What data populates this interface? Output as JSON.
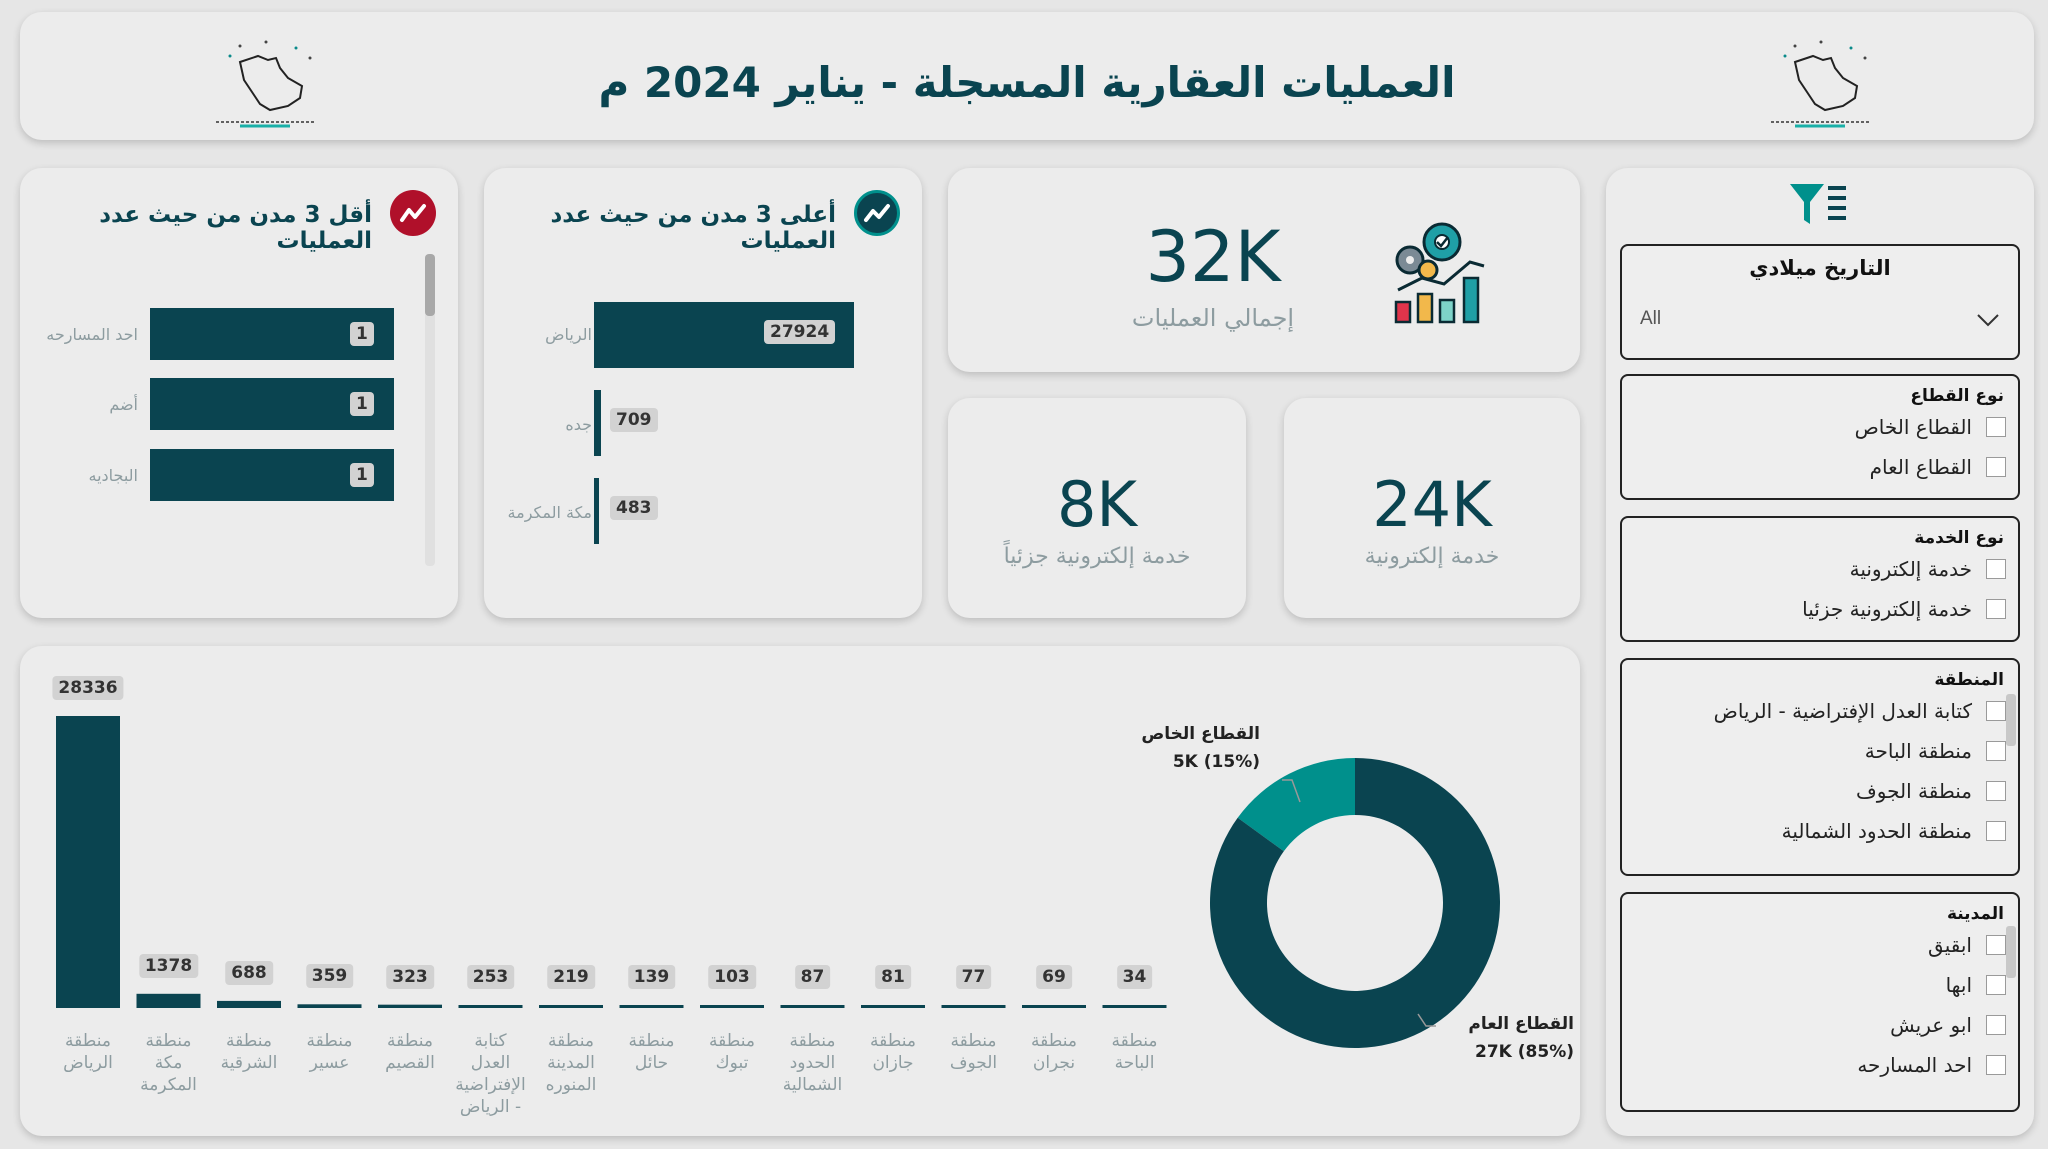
{
  "header": {
    "title": "العمليات العقارية المسجلة  - يناير 2024 م"
  },
  "kpis": {
    "total": {
      "value": "32K",
      "label": "إجمالي العمليات"
    },
    "partial_electronic": {
      "value": "8K",
      "label": "خدمة إلكترونية جزئياً"
    },
    "electronic": {
      "value": "24K",
      "label": "خدمة إلكترونية"
    }
  },
  "bottom3": {
    "title": "أقل 3 مدن من حيث عدد العمليات",
    "items": [
      {
        "city": "احد المسارحه",
        "value": 1
      },
      {
        "city": "أضم",
        "value": 1
      },
      {
        "city": "البجاديه",
        "value": 1
      }
    ]
  },
  "top3": {
    "title": "أعلى 3 مدن من حيث عدد العمليات",
    "items": [
      {
        "city": "الرياض",
        "value": 27924
      },
      {
        "city": "جده",
        "value": 709
      },
      {
        "city": "مكة المكرمة",
        "value": 483
      }
    ]
  },
  "slicers": {
    "date": {
      "title": "التاريخ ميلادي",
      "selected": "All"
    },
    "sector": {
      "title": "نوع القطاع",
      "options": [
        "القطاع الخاص",
        "القطاع العام"
      ]
    },
    "service": {
      "title": "نوع الخدمة",
      "options": [
        "خدمة إلكترونية",
        "خدمة إلكترونية جزئيا"
      ]
    },
    "region": {
      "title": "المنطقة",
      "options": [
        "كتابة العدل الإفتراضية - الرياض",
        "منطقة الباحة",
        "منطقة الجوف",
        "منطقة الحدود الشمالية"
      ]
    },
    "city": {
      "title": "المدينة",
      "options": [
        "ابقيق",
        "ابها",
        "ابو عريش",
        "احد المسارحه"
      ]
    }
  },
  "colors": {
    "primary": "#0a4450",
    "accent": "#00908c",
    "background": "#e6e6e6",
    "card": "#ececec",
    "label_gray": "#8d9ca0"
  },
  "chart_data": [
    {
      "type": "bar",
      "categories": [
        "منطقة الرياض",
        "منطقة مكة المكرمة",
        "منطقة الشرقية",
        "منطقة عسير",
        "منطقة القصيم",
        "كتابة العدل الإفتراضية - الرياض",
        "منطقة المدينة المنوره",
        "منطقة حائل",
        "منطقة تبوك",
        "منطقة الحدود الشمالية",
        "منطقة جازان",
        "منطقة الجوف",
        "منطقة نجران",
        "منطقة الباحة"
      ],
      "values": [
        28336,
        1378,
        688,
        359,
        323,
        253,
        219,
        139,
        103,
        87,
        81,
        77,
        69,
        34
      ],
      "ylim": [
        0,
        28336
      ]
    },
    {
      "type": "pie",
      "labels": [
        "القطاع العام",
        "القطاع الخاص"
      ],
      "values": [
        27,
        5
      ],
      "display": [
        "27K (85%)",
        "5K (15%)"
      ],
      "percents": [
        85,
        15
      ],
      "colors": [
        "#0a4450",
        "#00908c"
      ]
    }
  ]
}
